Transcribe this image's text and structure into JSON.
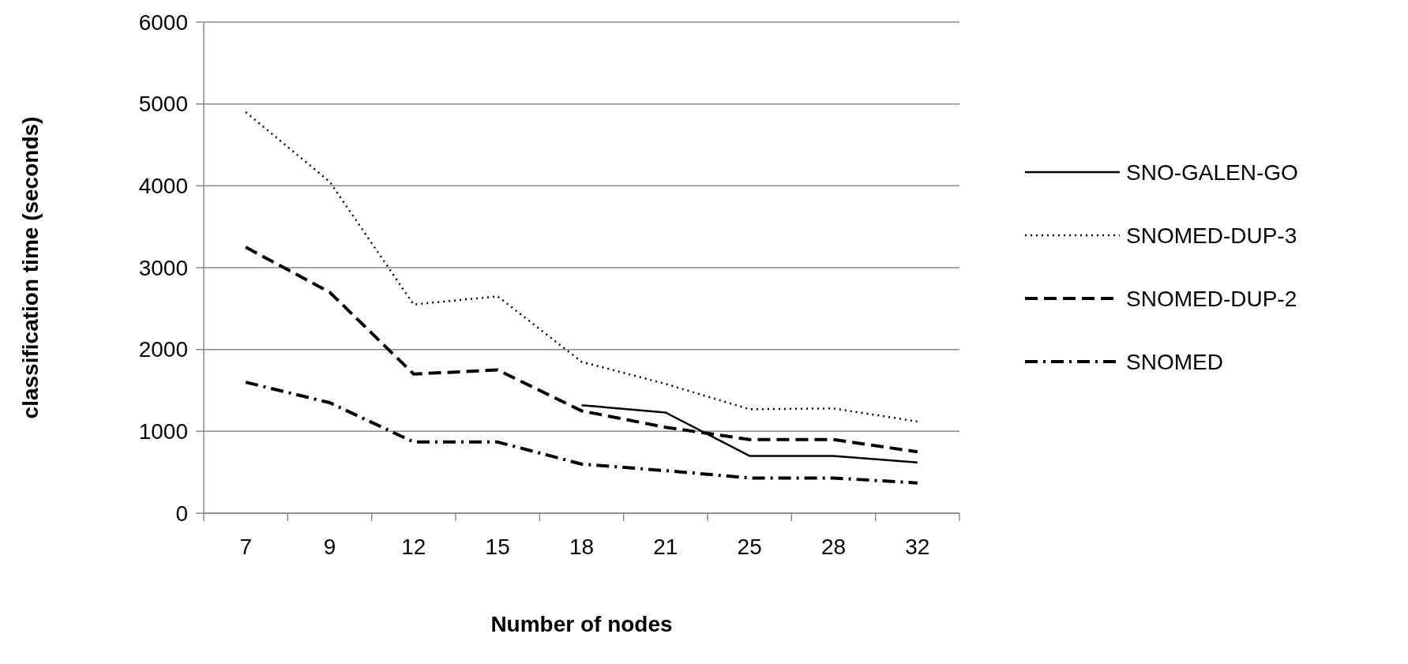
{
  "chart_data": {
    "type": "line",
    "xlabel": "Number of nodes",
    "ylabel": "classification time (seconds)",
    "categories": [
      "7",
      "9",
      "12",
      "15",
      "18",
      "21",
      "25",
      "28",
      "32"
    ],
    "ylim": [
      0,
      6000
    ],
    "yticks": [
      0,
      1000,
      2000,
      3000,
      4000,
      5000,
      6000
    ],
    "grid": "y",
    "legend": "right",
    "marker": "none",
    "series": [
      {
        "name": "SNO-GALEN-GO",
        "color": "#000000",
        "line_style": "solid",
        "values": [
          null,
          null,
          null,
          null,
          1320,
          1230,
          700,
          700,
          620
        ]
      },
      {
        "name": "SNOMED-DUP-3",
        "color": "#000000",
        "line_style": "dotted",
        "values": [
          4900,
          4050,
          2550,
          2650,
          1850,
          1580,
          1270,
          1280,
          1120
        ]
      },
      {
        "name": "SNOMED-DUP-2",
        "color": "#000000",
        "line_style": "dashed",
        "values": [
          3250,
          2700,
          1700,
          1750,
          1250,
          1050,
          900,
          900,
          750
        ]
      },
      {
        "name": "SNOMED",
        "color": "#000000",
        "line_style": "dashdot",
        "values": [
          1600,
          1350,
          870,
          870,
          600,
          520,
          430,
          430,
          370
        ]
      }
    ]
  }
}
